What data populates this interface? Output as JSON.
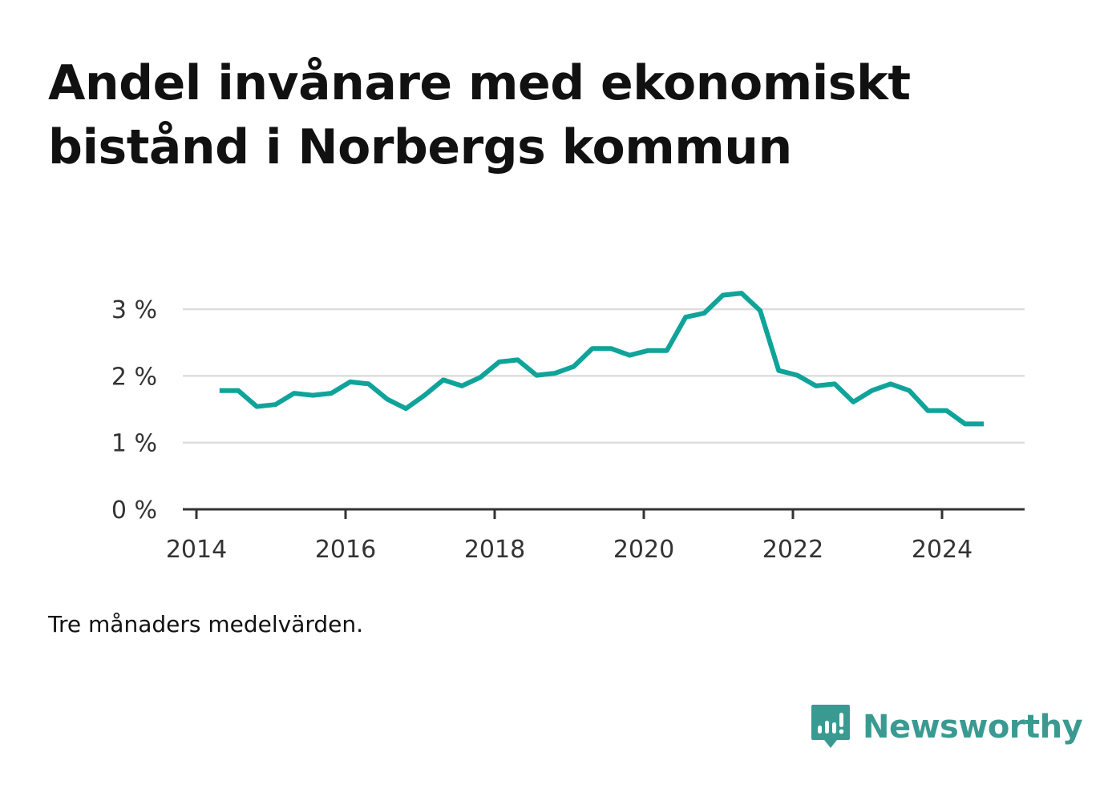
{
  "title": "Andel invånare med ekonomiskt bistånd i Norbergs kommun",
  "note": "Tre månaders medelvärden.",
  "brand": {
    "name": "Newsworthy",
    "icon": "newsworthy-logo-icon",
    "color": "#3a9a92"
  },
  "chart_data": {
    "type": "line",
    "title": "",
    "xlabel": "",
    "ylabel": "",
    "x_ticks": [
      "2014",
      "2016",
      "2018",
      "2020",
      "2022",
      "2024"
    ],
    "y_ticks": [
      "0 %",
      "1 %",
      "2 %",
      "3 %"
    ],
    "xlim": [
      2014.0,
      2025.1
    ],
    "ylim": [
      0,
      3.3
    ],
    "grid": true,
    "line_color": "#0fa39a",
    "series": [
      {
        "x": [
          2014.31,
          2014.56,
          2014.81,
          2015.06,
          2015.31,
          2015.56,
          2015.81,
          2016.06,
          2016.31,
          2016.56,
          2016.81,
          2017.06,
          2017.31,
          2017.56,
          2017.81,
          2018.06,
          2018.31,
          2018.56,
          2018.81,
          2019.06,
          2019.31,
          2019.56,
          2019.81,
          2020.06,
          2020.31,
          2020.56,
          2020.81,
          2021.06,
          2021.31,
          2021.56,
          2021.81,
          2022.06,
          2022.31,
          2022.56,
          2022.81,
          2023.06,
          2023.31,
          2023.56,
          2023.81,
          2024.06,
          2024.31,
          2024.56
        ],
        "y": [
          1.78,
          1.78,
          1.54,
          1.57,
          1.74,
          1.71,
          1.74,
          1.91,
          1.88,
          1.65,
          1.51,
          1.71,
          1.94,
          1.85,
          1.98,
          2.21,
          2.24,
          2.01,
          2.04,
          2.14,
          2.41,
          2.41,
          2.31,
          2.38,
          2.38,
          2.88,
          2.94,
          3.21,
          3.24,
          2.98,
          2.08,
          2.01,
          1.85,
          1.88,
          1.61,
          1.78,
          1.88,
          1.78,
          1.48,
          1.48,
          1.28,
          1.28
        ]
      }
    ]
  }
}
